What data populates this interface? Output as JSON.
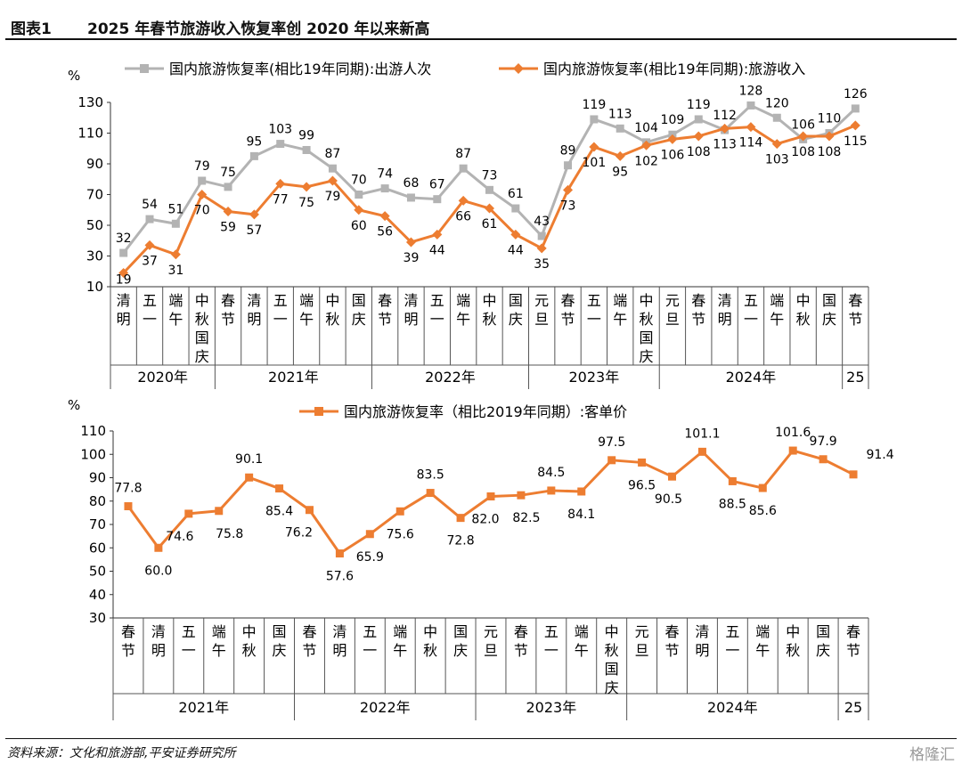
{
  "header": {
    "fig_label": "图表1",
    "title": "2025 年春节旅游收入恢复率创 2020 年以来新高"
  },
  "footer": {
    "source": "资料来源：文化和旅游部,平安证券研究所",
    "watermark": "格隆汇"
  },
  "colors": {
    "gray": "#b3b3b3",
    "orange": "#ed7d31"
  },
  "chart_data": [
    {
      "type": "line",
      "unit_label": "%",
      "ylim": [
        10,
        130
      ],
      "yticks": [
        10,
        30,
        50,
        70,
        90,
        110,
        130
      ],
      "categories": [
        "清明",
        "五一",
        "端午",
        "中秋国庆",
        "春节",
        "清明",
        "五一",
        "端午",
        "中秋",
        "国庆",
        "春节",
        "清明",
        "五一",
        "端午",
        "中秋",
        "国庆",
        "元旦",
        "春节",
        "五一",
        "端午",
        "中秋国庆",
        "元旦",
        "春节",
        "清明",
        "五一",
        "端午",
        "中秋",
        "国庆",
        "春节"
      ],
      "groups": [
        {
          "label": "2020年",
          "start": 0,
          "end": 3
        },
        {
          "label": "2021年",
          "start": 4,
          "end": 9
        },
        {
          "label": "2022年",
          "start": 10,
          "end": 15
        },
        {
          "label": "2023年",
          "start": 16,
          "end": 20
        },
        {
          "label": "2024年",
          "start": 21,
          "end": 27
        },
        {
          "label": "25",
          "start": 28,
          "end": 28
        }
      ],
      "series": [
        {
          "name": "国内旅游恢复率(相比19年同期):出游人次",
          "color": "#b3b3b3",
          "marker": "square",
          "values": [
            32,
            54,
            51,
            79,
            75,
            95,
            103,
            99,
            87,
            70,
            74,
            68,
            67,
            87,
            73,
            61,
            43,
            89,
            119,
            113,
            104,
            109,
            119,
            112,
            128,
            120,
            106,
            110,
            126
          ]
        },
        {
          "name": "国内旅游恢复率(相比19年同期):旅游收入",
          "color": "#ed7d31",
          "marker": "diamond",
          "values": [
            19,
            37,
            31,
            70,
            59,
            57,
            77,
            75,
            79,
            60,
            56,
            39,
            44,
            66,
            61,
            44,
            35,
            73,
            101,
            95,
            102,
            106,
            108,
            113,
            114,
            103,
            108,
            108,
            115
          ]
        }
      ]
    },
    {
      "type": "line",
      "unit_label": "%",
      "ylim": [
        30,
        110
      ],
      "yticks": [
        30,
        40,
        50,
        60,
        70,
        80,
        90,
        100,
        110
      ],
      "categories": [
        "春节",
        "清明",
        "五一",
        "端午",
        "中秋",
        "国庆",
        "春节",
        "清明",
        "五一",
        "端午",
        "中秋",
        "国庆",
        "元旦",
        "春节",
        "五一",
        "端午",
        "中秋国庆",
        "元旦",
        "春节",
        "清明",
        "五一",
        "端午",
        "中秋",
        "国庆",
        "春节"
      ],
      "groups": [
        {
          "label": "2021年",
          "start": 0,
          "end": 5
        },
        {
          "label": "2022年",
          "start": 6,
          "end": 11
        },
        {
          "label": "2023年",
          "start": 12,
          "end": 16
        },
        {
          "label": "2024年",
          "start": 17,
          "end": 23
        },
        {
          "label": "25",
          "start": 24,
          "end": 24
        }
      ],
      "series": [
        {
          "name": "国内旅游恢复率（相比2019年同期）:客单价",
          "color": "#ed7d31",
          "marker": "square",
          "values": [
            77.8,
            60.0,
            74.6,
            75.8,
            90.1,
            85.4,
            76.2,
            57.6,
            65.9,
            75.6,
            83.5,
            72.8,
            82.0,
            82.5,
            84.5,
            84.1,
            97.5,
            96.5,
            90.5,
            101.1,
            88.5,
            85.6,
            101.6,
            97.9,
            91.4
          ]
        }
      ]
    }
  ]
}
